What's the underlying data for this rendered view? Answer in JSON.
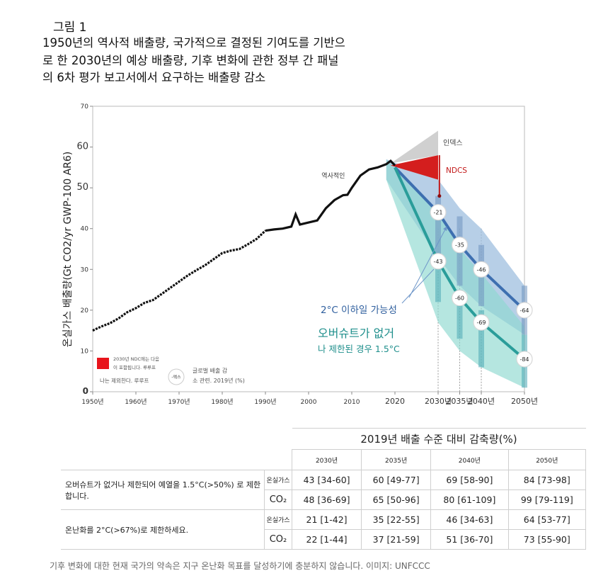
{
  "figure_label": "그림 1",
  "title_lines": [
    "1950년의 역사적 배출량, 국가적으로 결정된 기여도를 기반으",
    "로 한 2030년의 예상 배출량, 기후 변화에 관한 정부 간 패널",
    "의 6차 평가 보고서에서 요구하는 배출량 감소"
  ],
  "chart_data": {
    "type": "line",
    "ylabel": "온실가스 배출량(Gt CO2/yr GWP-100 AR6)",
    "xlim": [
      1950,
      2050
    ],
    "ylim": [
      0,
      70
    ],
    "x_ticks": [
      "1950년",
      "1960년",
      "1970년",
      "1980년",
      "1990년",
      "2000",
      "2010",
      "2020",
      "2030년",
      "2035년",
      "2040년",
      "2050년"
    ],
    "y_ticks": [
      "0",
      "10",
      "20",
      "30",
      "40",
      "50",
      "60",
      "70"
    ],
    "grid": false,
    "series": [
      {
        "name": "역사적인",
        "x": [
          1950,
          1952,
          1954,
          1956,
          1958,
          1960,
          1962,
          1964,
          1966,
          1968,
          1970,
          1972,
          1974,
          1976,
          1978,
          1980,
          1982,
          1984,
          1986,
          1988,
          1990,
          1992,
          1994,
          1996,
          1997,
          1998,
          2000,
          2002,
          2004,
          2006,
          2008,
          2009,
          2010,
          2012,
          2014,
          2016,
          2018,
          2019,
          2020
        ],
        "y": [
          15,
          16,
          16.8,
          18,
          19.5,
          20.5,
          21.8,
          22.5,
          24,
          25.5,
          27,
          28.5,
          29.8,
          31,
          32.5,
          34,
          34.6,
          35,
          36.2,
          37.5,
          39.5,
          39.8,
          40,
          40.5,
          43.5,
          41,
          41.5,
          42,
          45,
          47,
          48.2,
          48.3,
          50,
          53,
          54.5,
          55,
          55.8,
          56.6,
          55.5
        ]
      }
    ],
    "ndc_2030": {
      "label": "NDCS",
      "range": [
        48,
        58
      ]
    },
    "index_label": "인덱스",
    "pathways": [
      {
        "name": "2°C 이하일 가능성",
        "color": "#3d6fb0",
        "x": [
          2020,
          2030,
          2035,
          2040,
          2050
        ],
        "y": [
          55,
          44,
          36,
          30,
          20
        ],
        "markers": [
          {
            "x": 2030,
            "label": "-21"
          },
          {
            "x": 2035,
            "label": "-35"
          },
          {
            "x": 2040,
            "label": "-46"
          },
          {
            "x": 2050,
            "label": "-64"
          }
        ]
      },
      {
        "name": "오버슈트가 없거 나 제한된 경우 1.5°C",
        "color": "#2a9d9a",
        "x": [
          2020,
          2030,
          2035,
          2040,
          2050
        ],
        "y": [
          55,
          32,
          23,
          17,
          8
        ],
        "markers": [
          {
            "x": 2030,
            "label": "-43"
          },
          {
            "x": 2035,
            "label": "-60"
          },
          {
            "x": 2040,
            "label": "-69"
          },
          {
            "x": 2050,
            "label": "-84"
          }
        ]
      }
    ],
    "annotations": {
      "below2c": "2°C 이하일 가능성",
      "onefive_line1": "오버슈트가 없거",
      "onefive_line2": "나 제한된 경우 1.5°C"
    },
    "legend": {
      "red_line1": "2030년 NDC에는 다음",
      "red_line2": "이 포함됩니다. 루루프",
      "red_line3": "나는 제외한다. 루루프",
      "circle_label": "-엑스",
      "circle_line1": "글로벌 배출 감",
      "circle_line2": "소 관련. 2019년 (%)"
    }
  },
  "table": {
    "header": "2019년 배출 수준 대비 감축량(%)",
    "years": [
      "2030년",
      "2035년",
      "2040년",
      "2050년"
    ],
    "groups": [
      {
        "label": "오버슈트가 없거나 제한되어 예열을 1.5°C(>50%) 로 제한합니다.",
        "rows": [
          {
            "gas": "온실가스",
            "values": [
              "43 [34-60]",
              "60 [49-77]",
              "69 [58-90]",
              "84 [73-98]"
            ]
          },
          {
            "gas": "CO₂",
            "values": [
              "48 [36-69]",
              "65 [50-96]",
              "80 [61-109]",
              "99 [79-119]"
            ]
          }
        ]
      },
      {
        "label": "온난화를 2°C(>67%)로 제한하세요.",
        "rows": [
          {
            "gas": "온실가스",
            "values": [
              "21 [1-42]",
              "35 [22-55]",
              "46 [34-63]",
              "64 [53-77]"
            ]
          },
          {
            "gas": "CO₂",
            "values": [
              "22 [1-44]",
              "37 [21-59]",
              "51 [36-70]",
              "73 [55-90]"
            ]
          }
        ]
      }
    ]
  },
  "caption": "기후 변화에 대한 현재 국가의 약속은 지구 온난화 목표를 달성하기에 충분하지 않습니다. 이미지: UNFCCC"
}
